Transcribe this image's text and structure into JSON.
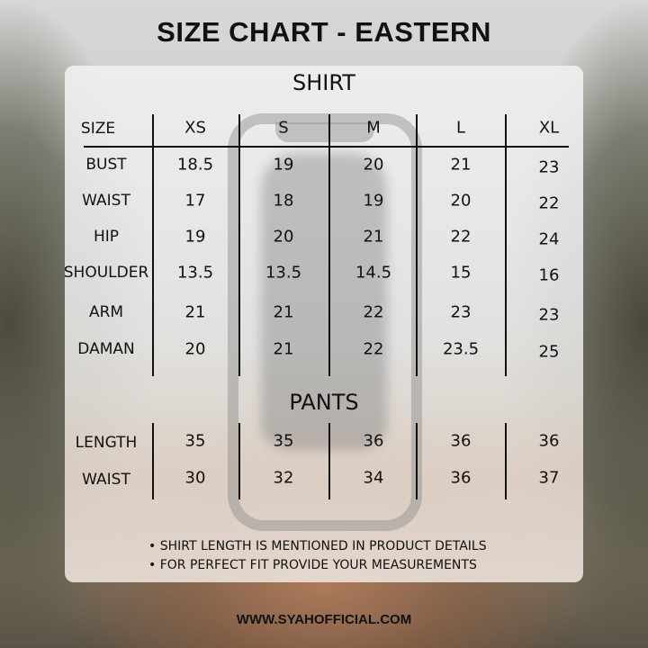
{
  "title": "SIZE CHART - EASTERN",
  "shirt": {
    "heading": "SHIRT",
    "header_label": "SIZE",
    "sizes": [
      "XS",
      "S",
      "M",
      "L",
      "XL"
    ],
    "rows": [
      {
        "label": "BUST",
        "values": [
          "18.5",
          "19",
          "20",
          "21",
          "23"
        ]
      },
      {
        "label": "WAIST",
        "values": [
          "17",
          "18",
          "19",
          "20",
          "22"
        ]
      },
      {
        "label": "HIP",
        "values": [
          "19",
          "20",
          "21",
          "22",
          "24"
        ]
      },
      {
        "label": "SHOULDER",
        "values": [
          "13.5",
          "13.5",
          "14.5",
          "15",
          "16"
        ]
      },
      {
        "label": "ARM",
        "values": [
          "21",
          "21",
          "22",
          "23",
          "23"
        ]
      },
      {
        "label": "DAMAN",
        "values": [
          "20",
          "21",
          "22",
          "23.5",
          "25"
        ]
      }
    ]
  },
  "pants": {
    "heading": "PANTS",
    "rows": [
      {
        "label": "LENGTH",
        "values": [
          "35",
          "35",
          "36",
          "36",
          "36"
        ]
      },
      {
        "label": "WAIST",
        "values": [
          "30",
          "32",
          "34",
          "36",
          "37"
        ]
      }
    ]
  },
  "notes": [
    "SHIRT LENGTH IS MENTIONED IN PRODUCT DETAILS",
    "FOR PERFECT FIT PROVIDE YOUR MEASUREMENTS"
  ],
  "website": "WWW.SYAHOFFICIAL.COM"
}
